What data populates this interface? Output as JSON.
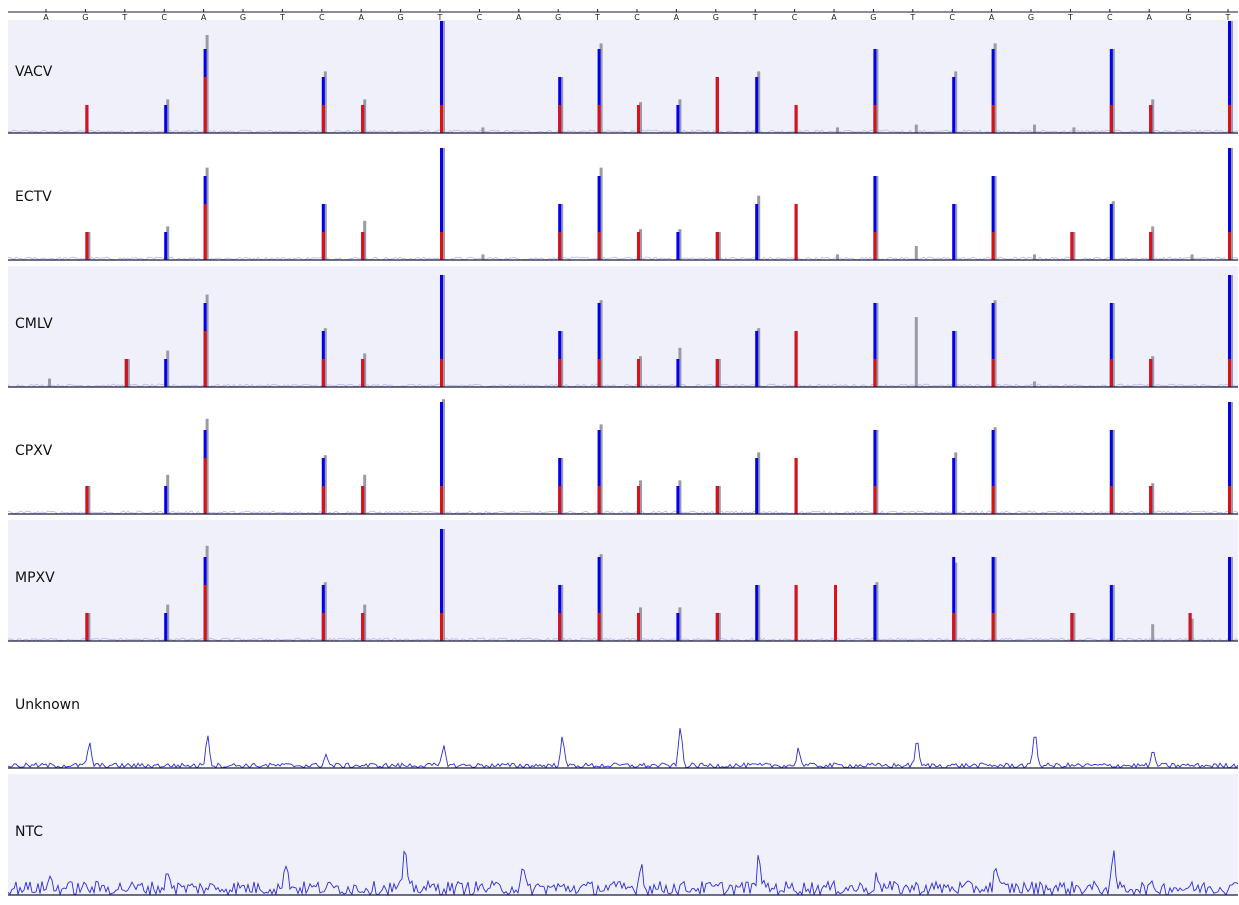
{
  "colors": {
    "panel_shade": "#f0f0fb",
    "panel_plain": "#ffffff",
    "peak_blue": "#0000ee",
    "peak_red": "#dd1111",
    "peak_grey": "#9a9aa8",
    "trace": "#2b2bdd",
    "trace_faint": "#b8b8ec",
    "baseline": "#1a1a3a"
  },
  "chart_data": {
    "type": "bar",
    "title": "",
    "xlabel": "",
    "ylabel": "",
    "grid": false,
    "legend": "none",
    "dispensation_order": [
      "A",
      "G",
      "T",
      "C",
      "A",
      "G",
      "T",
      "C",
      "A",
      "G",
      "T",
      "C",
      "A",
      "G",
      "T",
      "C",
      "A",
      "G",
      "T",
      "C",
      "A",
      "G",
      "T",
      "C",
      "A",
      "G",
      "T",
      "C",
      "A",
      "G",
      "T"
    ],
    "dispensation_ticks": [
      "A",
      "G",
      "T",
      "C",
      "A",
      "G",
      "T",
      "C",
      "A",
      "G",
      "T",
      "C",
      "A",
      "G",
      "T",
      "C",
      "A",
      "G",
      "T",
      "C",
      "A",
      "G",
      "T",
      "C",
      "A",
      "G",
      "T",
      "C",
      "A",
      "G",
      "T"
    ],
    "lanes": [
      {
        "name": "VACV",
        "shaded": true,
        "trace": "faint",
        "peaks": [
          0,
          1,
          0,
          1,
          3,
          0,
          0,
          2,
          1,
          0,
          4,
          0,
          0,
          2,
          3,
          1,
          1,
          2,
          2,
          1,
          0,
          3,
          0,
          2,
          3,
          0,
          0,
          3,
          1,
          0,
          4
        ],
        "red_units": [
          0,
          1,
          0,
          0,
          2,
          0,
          0,
          1,
          1,
          0,
          1,
          0,
          0,
          1,
          1,
          1,
          0,
          2,
          0,
          1,
          0,
          1,
          0,
          0,
          1,
          0,
          0,
          1,
          1,
          0,
          1
        ],
        "grey_units": [
          0,
          0,
          0,
          1.2,
          3.5,
          0,
          0,
          2.2,
          1.2,
          0,
          4,
          0.2,
          0,
          2,
          3.2,
          1.1,
          1.2,
          0,
          2.2,
          0,
          0.2,
          3,
          0.3,
          2.2,
          3.2,
          0.3,
          0.2,
          3,
          1.2,
          0,
          4
        ]
      },
      {
        "name": "ECTV",
        "shaded": false,
        "trace": "faint",
        "peaks": [
          0,
          1,
          0,
          1,
          3,
          0,
          0,
          2,
          1,
          0,
          4,
          0,
          0,
          2,
          3,
          1,
          1,
          1,
          2,
          2,
          0,
          3,
          0,
          2,
          3,
          0,
          1,
          2,
          1,
          0,
          4
        ],
        "red_units": [
          0,
          1,
          0,
          0,
          2,
          0,
          0,
          1,
          1,
          0,
          1,
          0,
          0,
          1,
          1,
          1,
          0,
          1,
          0,
          2,
          0,
          1,
          0,
          0,
          1,
          0,
          1,
          0,
          1,
          0,
          1
        ],
        "grey_units": [
          0,
          1,
          0,
          1.2,
          3.3,
          0,
          0,
          2,
          1.4,
          0,
          4,
          0.2,
          0,
          2,
          3.3,
          1.1,
          1.1,
          1,
          2.3,
          0,
          0.2,
          3,
          0.5,
          2,
          3,
          0.2,
          1,
          2.1,
          1.2,
          0.2,
          4
        ]
      },
      {
        "name": "CMLV",
        "shaded": true,
        "trace": "faint",
        "peaks": [
          0,
          0,
          1,
          1,
          3,
          0,
          0,
          2,
          1,
          0,
          4,
          0,
          0,
          2,
          3,
          1,
          1,
          1,
          2,
          2,
          0,
          3,
          0,
          2,
          3,
          0,
          0,
          3,
          1,
          0,
          4
        ],
        "red_units": [
          0,
          0,
          1,
          0,
          2,
          0,
          0,
          1,
          1,
          0,
          1,
          0,
          0,
          1,
          1,
          1,
          0,
          1,
          0,
          2,
          0,
          1,
          0,
          0,
          1,
          0,
          0,
          1,
          1,
          0,
          1
        ],
        "grey_units": [
          0.3,
          0,
          1,
          1.3,
          3.3,
          0,
          0,
          2.1,
          1.2,
          0,
          4,
          0,
          0,
          2,
          3.1,
          1.1,
          1.4,
          1,
          2.1,
          0,
          0,
          3,
          2.5,
          2,
          3.1,
          0.2,
          0,
          3,
          1.1,
          0,
          4
        ]
      },
      {
        "name": "CPXV",
        "shaded": false,
        "trace": "faint",
        "peaks": [
          0,
          1,
          0,
          1,
          3,
          0,
          0,
          2,
          1,
          0,
          4,
          0,
          0,
          2,
          3,
          1,
          1,
          1,
          2,
          2,
          0,
          3,
          0,
          2,
          3,
          0,
          0,
          3,
          1,
          0,
          4
        ],
        "red_units": [
          0,
          1,
          0,
          0,
          2,
          0,
          0,
          1,
          1,
          0,
          1,
          0,
          0,
          1,
          1,
          1,
          0,
          1,
          0,
          2,
          0,
          1,
          0,
          0,
          1,
          0,
          0,
          1,
          1,
          0,
          1
        ],
        "grey_units": [
          0,
          1,
          0,
          1.4,
          3.4,
          0,
          0,
          2.1,
          1.4,
          0,
          4.1,
          0,
          0,
          2,
          3.2,
          1.2,
          1.2,
          1,
          2.2,
          0,
          0,
          3,
          0,
          2.2,
          3.1,
          0,
          0,
          3,
          1.1,
          0,
          4
        ]
      },
      {
        "name": "MPXV",
        "shaded": true,
        "trace": "faint",
        "peaks": [
          0,
          1,
          0,
          1,
          3,
          0,
          0,
          2,
          1,
          0,
          4,
          0,
          0,
          2,
          3,
          1,
          1,
          1,
          2,
          2,
          2,
          2,
          0,
          3,
          3,
          0,
          1,
          2,
          0,
          1,
          3
        ],
        "red_units": [
          0,
          1,
          0,
          0,
          2,
          0,
          0,
          1,
          1,
          0,
          1,
          0,
          0,
          1,
          1,
          1,
          0,
          1,
          0,
          2,
          2,
          0,
          0,
          1,
          1,
          0,
          1,
          0,
          0,
          1,
          0
        ],
        "grey_units": [
          0,
          1,
          0,
          1.3,
          3.4,
          0,
          0,
          2.1,
          1.3,
          0,
          4,
          0,
          0,
          2,
          3.1,
          1.2,
          1.2,
          1,
          2,
          0,
          0,
          2.1,
          0,
          2.8,
          3,
          0,
          1,
          2,
          0.6,
          0.8,
          3
        ]
      },
      {
        "name": "Unknown",
        "shaded": false,
        "trace": "strong",
        "peaks": [],
        "red_units": [],
        "grey_units": []
      },
      {
        "name": "NTC",
        "shaded": true,
        "trace": "strong",
        "peaks": [],
        "red_units": [],
        "grey_units": []
      }
    ]
  }
}
